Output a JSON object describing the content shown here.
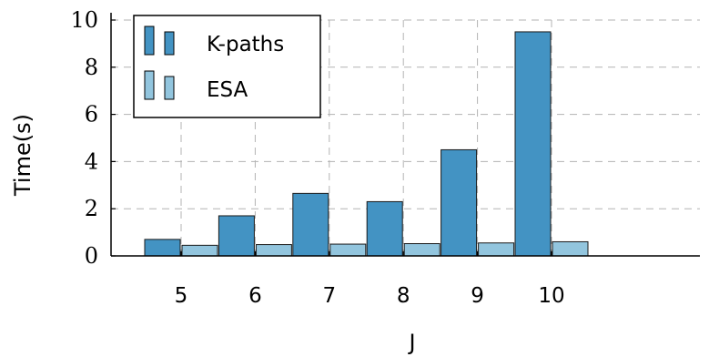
{
  "chart_data": {
    "type": "bar",
    "xlabel": "J",
    "ylabel": "Time(s)",
    "categories": [
      "5",
      "6",
      "7",
      "8",
      "9",
      "10"
    ],
    "ylim": [
      0,
      10
    ],
    "yticks": [
      "0",
      "2",
      "4",
      "6",
      "8",
      "10"
    ],
    "grid": true,
    "legend_position": "top-left",
    "series": [
      {
        "name": "K-paths",
        "color": "#4393c3",
        "values": [
          0.7,
          1.7,
          2.65,
          2.3,
          4.5,
          9.5
        ]
      },
      {
        "name": "ESA",
        "color": "#92c5de",
        "values": [
          0.45,
          0.48,
          0.5,
          0.52,
          0.55,
          0.6
        ]
      }
    ]
  }
}
